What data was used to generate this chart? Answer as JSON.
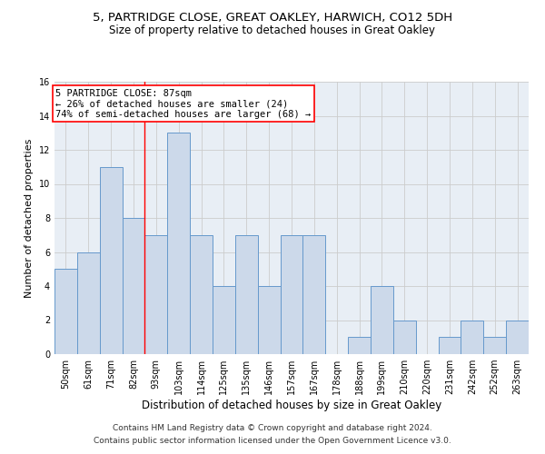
{
  "title1": "5, PARTRIDGE CLOSE, GREAT OAKLEY, HARWICH, CO12 5DH",
  "title2": "Size of property relative to detached houses in Great Oakley",
  "xlabel": "Distribution of detached houses by size in Great Oakley",
  "ylabel": "Number of detached properties",
  "categories": [
    "50sqm",
    "61sqm",
    "71sqm",
    "82sqm",
    "93sqm",
    "103sqm",
    "114sqm",
    "125sqm",
    "135sqm",
    "146sqm",
    "157sqm",
    "167sqm",
    "178sqm",
    "188sqm",
    "199sqm",
    "210sqm",
    "220sqm",
    "231sqm",
    "242sqm",
    "252sqm",
    "263sqm"
  ],
  "values": [
    5,
    6,
    11,
    8,
    7,
    13,
    7,
    4,
    7,
    4,
    7,
    7,
    0,
    1,
    4,
    2,
    0,
    1,
    2,
    1,
    2
  ],
  "bar_color": "#ccd9ea",
  "bar_edge_color": "#6699cc",
  "annotation_box_text": [
    "5 PARTRIDGE CLOSE: 87sqm",
    "← 26% of detached houses are smaller (24)",
    "74% of semi-detached houses are larger (68) →"
  ],
  "annotation_box_color": "white",
  "annotation_box_edge_color": "red",
  "vline_color": "red",
  "vline_x": 3.5,
  "ylim": [
    0,
    16
  ],
  "yticks": [
    0,
    2,
    4,
    6,
    8,
    10,
    12,
    14,
    16
  ],
  "grid_color": "#cccccc",
  "bg_color": "#e8eef5",
  "footnote1": "Contains HM Land Registry data © Crown copyright and database right 2024.",
  "footnote2": "Contains public sector information licensed under the Open Government Licence v3.0.",
  "title1_fontsize": 9.5,
  "title2_fontsize": 8.5,
  "xlabel_fontsize": 8.5,
  "ylabel_fontsize": 8,
  "tick_fontsize": 7,
  "annotation_fontsize": 7.5,
  "footnote_fontsize": 6.5
}
